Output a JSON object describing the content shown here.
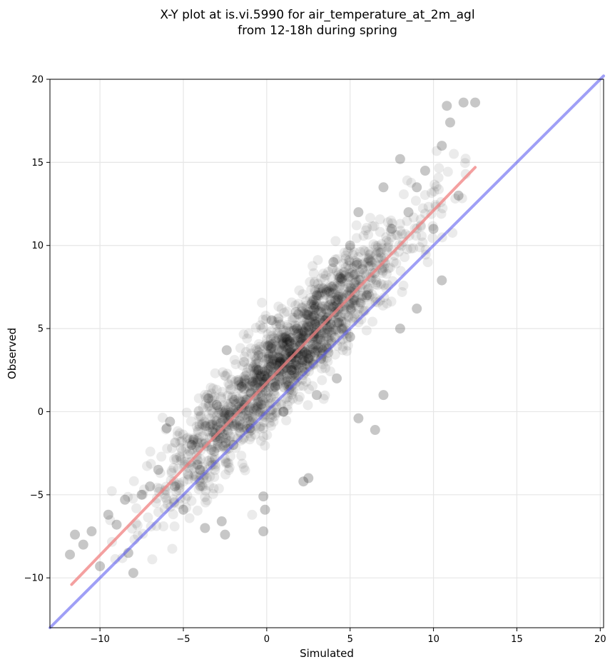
{
  "chart_data": {
    "type": "scatter",
    "title": [
      "X-Y plot at is.vi.5990 for air_temperature_at_2m_agl",
      "from 12-18h during spring"
    ],
    "xlabel": "Simulated",
    "ylabel": "Observed",
    "xlim": [
      -13,
      20.2
    ],
    "ylim": [
      -13,
      20
    ],
    "xticks": [
      -10,
      -5,
      0,
      5,
      10,
      15,
      20
    ],
    "xtick_labels": [
      "−10",
      "−5",
      "0",
      "5",
      "10",
      "15",
      "20"
    ],
    "yticks": [
      -10,
      -5,
      0,
      5,
      10,
      15,
      20
    ],
    "ytick_labels": [
      "−10",
      "−5",
      "0",
      "5",
      "10",
      "15",
      "20"
    ],
    "grid": true,
    "point_color": "#000000",
    "point_alpha": 0.08,
    "regression_line": {
      "color": "#f08080",
      "x": [
        -11.7,
        12.5
      ],
      "y": [
        -10.4,
        14.7
      ]
    },
    "identity_line": {
      "color": "#5050ee",
      "x": [
        -13,
        20.2
      ],
      "y": [
        -13,
        20.2
      ]
    },
    "points_sample": [
      [
        -11.8,
        -8.6
      ],
      [
        -11.5,
        -7.4
      ],
      [
        -11.0,
        -8.0
      ],
      [
        -10.5,
        -7.2
      ],
      [
        -10.0,
        -9.3
      ],
      [
        -9.5,
        -6.2
      ],
      [
        -9.0,
        -6.8
      ],
      [
        -8.5,
        -5.3
      ],
      [
        -8.3,
        -8.5
      ],
      [
        -8.0,
        -9.7
      ],
      [
        -7.5,
        -5.0
      ],
      [
        -7.0,
        -4.5
      ],
      [
        -6.5,
        -3.5
      ],
      [
        -6.0,
        -1.0
      ],
      [
        -5.8,
        -0.6
      ],
      [
        -5.5,
        -4.5
      ],
      [
        -5.0,
        -5.9
      ],
      [
        -4.5,
        -2.0
      ],
      [
        -4.0,
        -3.5
      ],
      [
        -3.7,
        -7.0
      ],
      [
        -3.5,
        0.8
      ],
      [
        -3.0,
        0.4
      ],
      [
        -2.7,
        -6.6
      ],
      [
        -2.5,
        -7.4
      ],
      [
        -2.4,
        3.7
      ],
      [
        -2.0,
        -2.0
      ],
      [
        -1.5,
        1.5
      ],
      [
        -1.0,
        -1.0
      ],
      [
        -0.5,
        2.5
      ],
      [
        -0.2,
        -5.1
      ],
      [
        -0.1,
        -5.9
      ],
      [
        -0.2,
        -7.2
      ],
      [
        0.0,
        2.0
      ],
      [
        0.3,
        5.5
      ],
      [
        0.5,
        1.5
      ],
      [
        0.8,
        3.0
      ],
      [
        1.0,
        0.0
      ],
      [
        1.5,
        2.5
      ],
      [
        1.8,
        5.0
      ],
      [
        2.0,
        4.0
      ],
      [
        2.2,
        -4.2
      ],
      [
        2.5,
        -4.0
      ],
      [
        2.5,
        3.2
      ],
      [
        3.0,
        1.0
      ],
      [
        3.0,
        7.0
      ],
      [
        3.5,
        5.5
      ],
      [
        4.0,
        9.0
      ],
      [
        4.2,
        2.0
      ],
      [
        4.5,
        8.0
      ],
      [
        5.0,
        10.0
      ],
      [
        5.0,
        4.5
      ],
      [
        5.5,
        12.0
      ],
      [
        5.5,
        -0.4
      ],
      [
        6.0,
        7.0
      ],
      [
        6.5,
        -1.1
      ],
      [
        7.0,
        13.5
      ],
      [
        7.0,
        1.0
      ],
      [
        7.5,
        11.0
      ],
      [
        8.0,
        15.2
      ],
      [
        8.0,
        5.0
      ],
      [
        8.5,
        12.0
      ],
      [
        9.0,
        13.5
      ],
      [
        9.0,
        6.2
      ],
      [
        9.5,
        14.5
      ],
      [
        10.0,
        11.0
      ],
      [
        10.5,
        16.0
      ],
      [
        10.5,
        7.9
      ],
      [
        10.8,
        18.4
      ],
      [
        11.0,
        17.4
      ],
      [
        11.5,
        13.0
      ],
      [
        11.8,
        18.6
      ],
      [
        12.5,
        18.6
      ]
    ]
  }
}
